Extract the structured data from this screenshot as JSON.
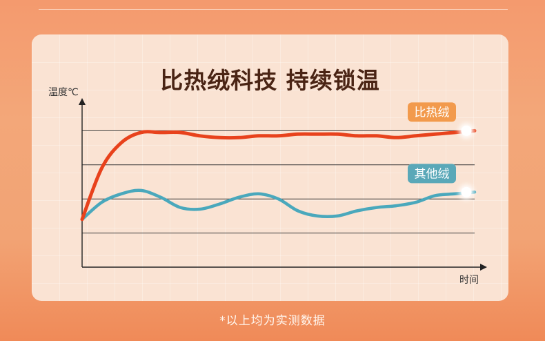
{
  "footer": "*以上均为实测数据",
  "colors": {
    "background_top": "#f49a6e",
    "background_bottom": "#f08a58",
    "card": "#fae3d3",
    "title": "#4a2414",
    "series_bire": "#e8421c",
    "series_other": "#4aa8bc",
    "legend_bire_bg": "#f29a4c",
    "legend_other_bg": "#5aa8b8"
  },
  "chart_data": {
    "type": "line",
    "title": "比热绒科技 持续锁温",
    "xlabel": "时间",
    "ylabel": "温度℃",
    "x": [
      0,
      5,
      10,
      15,
      20,
      25,
      30,
      35,
      40,
      45,
      50,
      55,
      60,
      65,
      70,
      75,
      80,
      85,
      90,
      95,
      100
    ],
    "ylim": [
      0,
      100
    ],
    "grid": "horizontal",
    "gridlines": [
      20,
      40,
      60,
      80
    ],
    "legend_placement": "inline-right",
    "series": [
      {
        "name": "比热绒",
        "color": "#e8421c",
        "values": [
          28,
          58,
          73,
          79,
          79,
          79,
          77,
          76,
          76,
          77,
          77,
          78,
          78,
          78,
          77,
          77,
          76,
          77,
          78,
          79,
          80
        ]
      },
      {
        "name": "其他绒",
        "color": "#4aa8bc",
        "values": [
          28,
          38,
          43,
          45,
          41,
          35,
          34,
          37,
          41,
          43,
          40,
          33,
          30,
          30,
          33,
          35,
          36,
          38,
          42,
          43,
          44
        ]
      }
    ]
  }
}
